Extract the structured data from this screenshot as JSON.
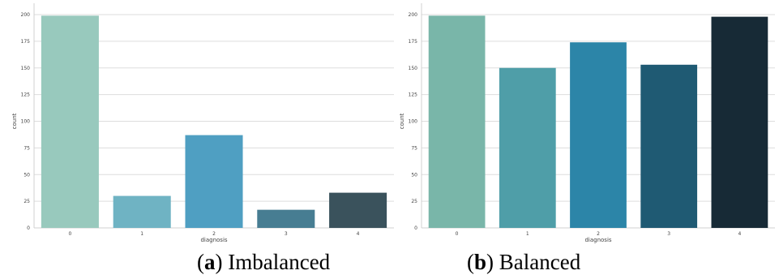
{
  "chart_data": [
    {
      "type": "bar",
      "categories": [
        "0",
        "1",
        "2",
        "3",
        "4"
      ],
      "values": [
        199,
        30,
        87,
        17,
        33
      ],
      "colors": [
        "#98c9bd",
        "#6fb3c3",
        "#4f9fc2",
        "#477d92",
        "#3a525c"
      ],
      "xlabel": "diagnosis",
      "ylabel": "count",
      "ylim": [
        0,
        200
      ],
      "yticks": [
        "0",
        "25",
        "50",
        "75",
        "100",
        "125",
        "150",
        "175",
        "200"
      ],
      "grid": true,
      "caption": {
        "letter": "a",
        "text": "Imbalanced"
      }
    },
    {
      "type": "bar",
      "categories": [
        "0",
        "1",
        "2",
        "3",
        "4"
      ],
      "values": [
        199,
        150,
        174,
        153,
        198
      ],
      "colors": [
        "#79b6a9",
        "#4f9ea8",
        "#2c85a8",
        "#1f5a73",
        "#172a36"
      ],
      "xlabel": "diagnosis",
      "ylabel": "count",
      "ylim": [
        0,
        200
      ],
      "yticks": [
        "0",
        "25",
        "50",
        "75",
        "100",
        "125",
        "150",
        "175",
        "200"
      ],
      "grid": true,
      "caption": {
        "letter": "b",
        "text": "Balanced"
      }
    }
  ]
}
